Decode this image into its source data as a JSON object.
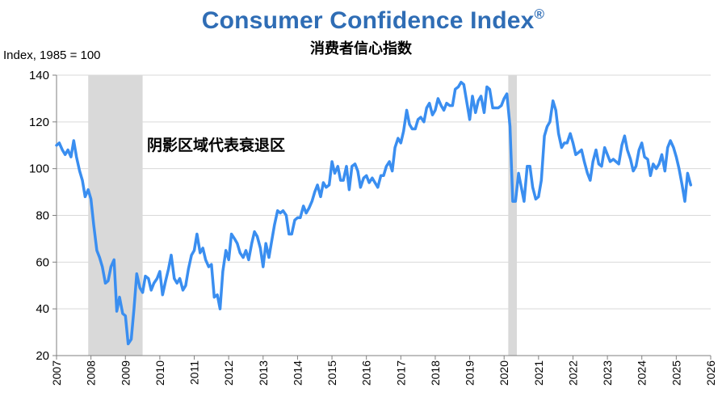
{
  "header": {
    "title": "Consumer Confidence Index",
    "title_mark": "®",
    "subtitle": "消费者信心指数"
  },
  "colors": {
    "title": "#2f6db5",
    "line": "#3a8ef0",
    "recession": "#d9d9d9",
    "grid": "#d9d9d9",
    "axis": "#7f7f7f"
  },
  "chart_data": {
    "type": "line",
    "title": "Consumer Confidence Index®",
    "subtitle": "消费者信心指数",
    "ylabel": "Index, 1985 = 100",
    "ylim": [
      20,
      140
    ],
    "yticks": [
      20,
      40,
      60,
      80,
      100,
      120,
      140
    ],
    "xlim": [
      2007,
      2026
    ],
    "xticks": [
      "2007",
      "2008",
      "2009",
      "2010",
      "2011",
      "2012",
      "2013",
      "2014",
      "2015",
      "2016",
      "2017",
      "2018",
      "2019",
      "2020",
      "2021",
      "2022",
      "2023",
      "2024",
      "2025",
      "2026"
    ],
    "grid": "horizontal",
    "annotation": "阴影区域代表衰退区",
    "recessions": [
      [
        2007.92,
        2009.5
      ],
      [
        2020.12,
        2020.37
      ]
    ],
    "series": [
      {
        "values": [
          [
            2007.0,
            110
          ],
          [
            2007.08,
            111
          ],
          [
            2007.17,
            108
          ],
          [
            2007.25,
            106
          ],
          [
            2007.33,
            108
          ],
          [
            2007.42,
            105
          ],
          [
            2007.5,
            112
          ],
          [
            2007.58,
            105
          ],
          [
            2007.67,
            99
          ],
          [
            2007.75,
            95
          ],
          [
            2007.83,
            88
          ],
          [
            2007.92,
            91
          ],
          [
            2008.0,
            87
          ],
          [
            2008.08,
            76
          ],
          [
            2008.17,
            65
          ],
          [
            2008.25,
            62
          ],
          [
            2008.33,
            58
          ],
          [
            2008.42,
            51
          ],
          [
            2008.5,
            52
          ],
          [
            2008.58,
            58
          ],
          [
            2008.67,
            61
          ],
          [
            2008.75,
            39
          ],
          [
            2008.83,
            45
          ],
          [
            2008.92,
            38
          ],
          [
            2009.0,
            37
          ],
          [
            2009.08,
            25
          ],
          [
            2009.17,
            27
          ],
          [
            2009.25,
            40
          ],
          [
            2009.33,
            55
          ],
          [
            2009.42,
            49
          ],
          [
            2009.5,
            47
          ],
          [
            2009.58,
            54
          ],
          [
            2009.67,
            53
          ],
          [
            2009.75,
            48
          ],
          [
            2009.83,
            51
          ],
          [
            2009.92,
            53
          ],
          [
            2010.0,
            56
          ],
          [
            2010.08,
            46
          ],
          [
            2010.17,
            52
          ],
          [
            2010.25,
            57
          ],
          [
            2010.33,
            63
          ],
          [
            2010.42,
            53
          ],
          [
            2010.5,
            51
          ],
          [
            2010.58,
            53
          ],
          [
            2010.67,
            48
          ],
          [
            2010.75,
            50
          ],
          [
            2010.83,
            57
          ],
          [
            2010.92,
            63
          ],
          [
            2011.0,
            65
          ],
          [
            2011.08,
            72
          ],
          [
            2011.17,
            64
          ],
          [
            2011.25,
            66
          ],
          [
            2011.33,
            61
          ],
          [
            2011.42,
            58
          ],
          [
            2011.5,
            59
          ],
          [
            2011.58,
            45
          ],
          [
            2011.67,
            46
          ],
          [
            2011.75,
            40
          ],
          [
            2011.83,
            56
          ],
          [
            2011.92,
            65
          ],
          [
            2012.0,
            61
          ],
          [
            2012.08,
            72
          ],
          [
            2012.17,
            70
          ],
          [
            2012.25,
            68
          ],
          [
            2012.33,
            64
          ],
          [
            2012.42,
            62
          ],
          [
            2012.5,
            65
          ],
          [
            2012.58,
            61
          ],
          [
            2012.67,
            68
          ],
          [
            2012.75,
            73
          ],
          [
            2012.83,
            71
          ],
          [
            2012.92,
            66
          ],
          [
            2013.0,
            58
          ],
          [
            2013.08,
            68
          ],
          [
            2013.17,
            62
          ],
          [
            2013.25,
            69
          ],
          [
            2013.33,
            76
          ],
          [
            2013.42,
            82
          ],
          [
            2013.5,
            81
          ],
          [
            2013.58,
            82
          ],
          [
            2013.67,
            80
          ],
          [
            2013.75,
            72
          ],
          [
            2013.83,
            72
          ],
          [
            2013.92,
            78
          ],
          [
            2014.0,
            79
          ],
          [
            2014.08,
            79
          ],
          [
            2014.17,
            84
          ],
          [
            2014.25,
            81
          ],
          [
            2014.33,
            83
          ],
          [
            2014.42,
            86
          ],
          [
            2014.5,
            90
          ],
          [
            2014.58,
            93
          ],
          [
            2014.67,
            88
          ],
          [
            2014.75,
            94
          ],
          [
            2014.83,
            92
          ],
          [
            2014.92,
            93
          ],
          [
            2015.0,
            103
          ],
          [
            2015.08,
            98
          ],
          [
            2015.17,
            101
          ],
          [
            2015.25,
            95
          ],
          [
            2015.33,
            95
          ],
          [
            2015.42,
            101
          ],
          [
            2015.5,
            91
          ],
          [
            2015.58,
            101
          ],
          [
            2015.67,
            102
          ],
          [
            2015.75,
            99
          ],
          [
            2015.83,
            92
          ],
          [
            2015.92,
            96
          ],
          [
            2016.0,
            97
          ],
          [
            2016.08,
            94
          ],
          [
            2016.17,
            96
          ],
          [
            2016.25,
            94
          ],
          [
            2016.33,
            92
          ],
          [
            2016.42,
            97
          ],
          [
            2016.5,
            97
          ],
          [
            2016.58,
            101
          ],
          [
            2016.67,
            103
          ],
          [
            2016.75,
            99
          ],
          [
            2016.83,
            109
          ],
          [
            2016.92,
            113
          ],
          [
            2017.0,
            111
          ],
          [
            2017.08,
            116
          ],
          [
            2017.17,
            125
          ],
          [
            2017.25,
            119
          ],
          [
            2017.33,
            117
          ],
          [
            2017.42,
            117
          ],
          [
            2017.5,
            121
          ],
          [
            2017.58,
            122
          ],
          [
            2017.67,
            120
          ],
          [
            2017.75,
            126
          ],
          [
            2017.83,
            128
          ],
          [
            2017.92,
            123
          ],
          [
            2018.0,
            125
          ],
          [
            2018.08,
            130
          ],
          [
            2018.17,
            127
          ],
          [
            2018.25,
            125
          ],
          [
            2018.33,
            128
          ],
          [
            2018.42,
            127
          ],
          [
            2018.5,
            127
          ],
          [
            2018.58,
            134
          ],
          [
            2018.67,
            135
          ],
          [
            2018.75,
            137
          ],
          [
            2018.83,
            136
          ],
          [
            2018.92,
            128
          ],
          [
            2019.0,
            121
          ],
          [
            2019.08,
            131
          ],
          [
            2019.17,
            124
          ],
          [
            2019.25,
            129
          ],
          [
            2019.33,
            131
          ],
          [
            2019.42,
            124
          ],
          [
            2019.5,
            135
          ],
          [
            2019.58,
            134
          ],
          [
            2019.67,
            126
          ],
          [
            2019.75,
            126
          ],
          [
            2019.83,
            126
          ],
          [
            2019.92,
            127
          ],
          [
            2020.0,
            130
          ],
          [
            2020.08,
            132
          ],
          [
            2020.17,
            118
          ],
          [
            2020.25,
            86
          ],
          [
            2020.33,
            86
          ],
          [
            2020.42,
            98
          ],
          [
            2020.5,
            92
          ],
          [
            2020.58,
            86
          ],
          [
            2020.67,
            101
          ],
          [
            2020.75,
            101
          ],
          [
            2020.83,
            92
          ],
          [
            2020.92,
            87
          ],
          [
            2021.0,
            88
          ],
          [
            2021.08,
            95
          ],
          [
            2021.17,
            114
          ],
          [
            2021.25,
            118
          ],
          [
            2021.33,
            120
          ],
          [
            2021.42,
            129
          ],
          [
            2021.5,
            125
          ],
          [
            2021.58,
            115
          ],
          [
            2021.67,
            109
          ],
          [
            2021.75,
            111
          ],
          [
            2021.83,
            111
          ],
          [
            2021.92,
            115
          ],
          [
            2022.0,
            111
          ],
          [
            2022.08,
            106
          ],
          [
            2022.17,
            107
          ],
          [
            2022.25,
            108
          ],
          [
            2022.33,
            103
          ],
          [
            2022.42,
            98
          ],
          [
            2022.5,
            95
          ],
          [
            2022.58,
            103
          ],
          [
            2022.67,
            108
          ],
          [
            2022.75,
            102
          ],
          [
            2022.83,
            101
          ],
          [
            2022.92,
            109
          ],
          [
            2023.0,
            106
          ],
          [
            2023.08,
            103
          ],
          [
            2023.17,
            104
          ],
          [
            2023.25,
            103
          ],
          [
            2023.33,
            102
          ],
          [
            2023.42,
            110
          ],
          [
            2023.5,
            114
          ],
          [
            2023.58,
            108
          ],
          [
            2023.67,
            104
          ],
          [
            2023.75,
            99
          ],
          [
            2023.83,
            101
          ],
          [
            2023.92,
            108
          ],
          [
            2024.0,
            111
          ],
          [
            2024.08,
            105
          ],
          [
            2024.17,
            104
          ],
          [
            2024.25,
            97
          ],
          [
            2024.33,
            102
          ],
          [
            2024.42,
            100
          ],
          [
            2024.5,
            102
          ],
          [
            2024.58,
            106
          ],
          [
            2024.67,
            99
          ],
          [
            2024.75,
            109
          ],
          [
            2024.83,
            112
          ],
          [
            2024.92,
            109
          ],
          [
            2025.0,
            105
          ],
          [
            2025.08,
            100
          ],
          [
            2025.17,
            93
          ],
          [
            2025.25,
            86
          ],
          [
            2025.33,
            98
          ],
          [
            2025.42,
            93
          ]
        ]
      }
    ]
  }
}
